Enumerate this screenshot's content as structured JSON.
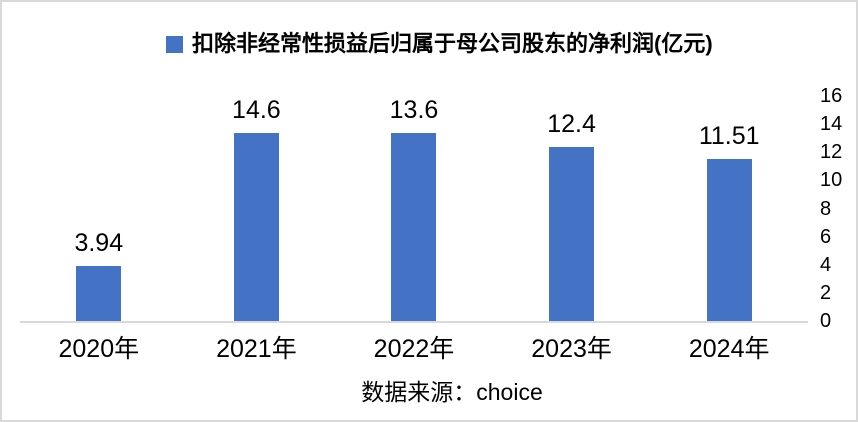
{
  "legend": {
    "label": "扣除非经常性损益后归属于母公司股东的净利润(亿元)",
    "swatch_color": "#4472C4"
  },
  "source": {
    "text": "数据来源：choice"
  },
  "chart_data": {
    "type": "bar",
    "title": "扣除非经常性损益后归属于母公司股东的净利润(亿元)",
    "series_name": "扣除非经常性损益后归属于母公司股东的净利润(亿元)",
    "categories": [
      "2020年",
      "2021年",
      "2022年",
      "2023年",
      "2024年"
    ],
    "values": [
      3.94,
      14.6,
      13.6,
      12.4,
      11.51
    ],
    "value_labels": [
      "3.94",
      "14.6",
      "13.6",
      "12.4",
      "11.51"
    ],
    "xlabel": "",
    "ylabel": "",
    "ylim": [
      0,
      16
    ],
    "y_ticks": [
      0,
      2,
      4,
      6,
      8,
      10,
      12,
      14,
      16
    ],
    "y_axis_side": "right",
    "grid": false,
    "legend_position": "top",
    "bar_color": "#4472C4",
    "axis_color": "#D9D9D9",
    "source_note": "数据来源：choice"
  }
}
